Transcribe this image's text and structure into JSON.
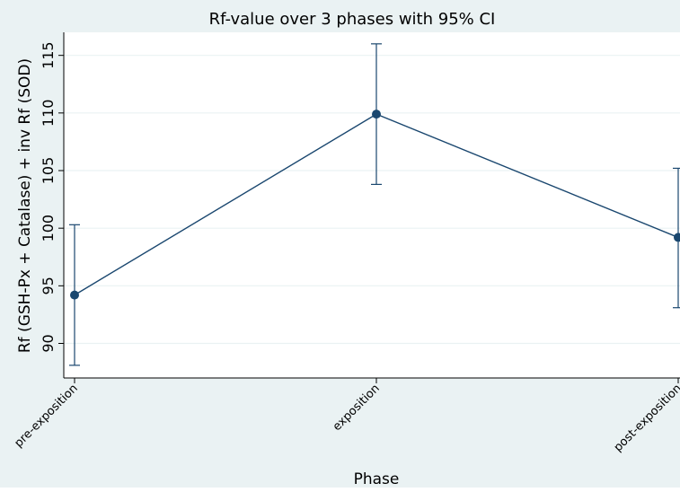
{
  "chart_data": {
    "type": "line",
    "title": "Rf-value over 3 phases with 95% CI",
    "xlabel": "Phase",
    "ylabel": "Rf (GSH-Px + Catalase) + inv Rf (SOD)",
    "categories": [
      "pre-exposition",
      "exposition",
      "post-exposition"
    ],
    "series": [
      {
        "values": [
          94.2,
          109.9,
          99.2
        ],
        "ci_lower": [
          88.1,
          103.8,
          93.1
        ],
        "ci_upper": [
          100.3,
          116.0,
          105.2
        ]
      }
    ],
    "yticks": [
      90,
      95,
      100,
      105,
      110,
      115
    ],
    "ylim": [
      87.0,
      117.0
    ],
    "grid": true,
    "colors": {
      "background": "#eaf2f3",
      "plot": "#ffffff",
      "line": "#1a476f",
      "grid": "#eaf2f3",
      "text": "#000000"
    }
  }
}
